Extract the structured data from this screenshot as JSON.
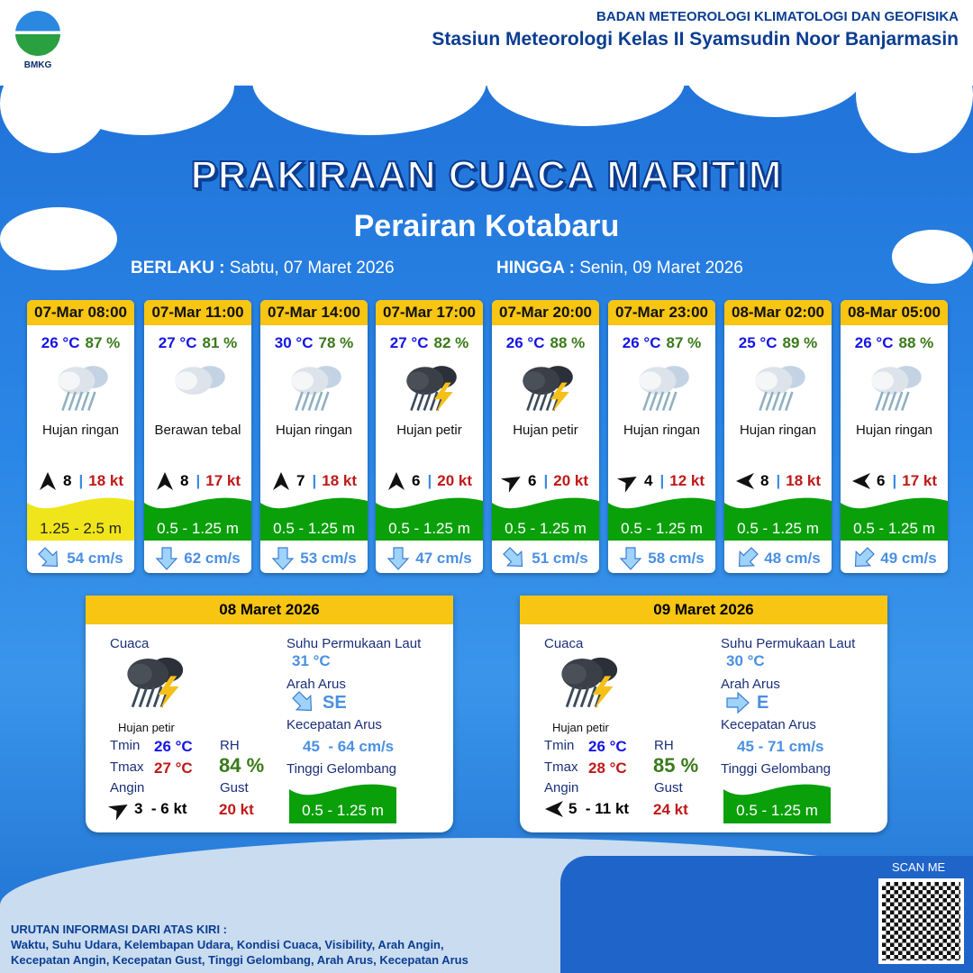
{
  "header": {
    "logo_text": "BMKG",
    "org": "BADAN METEOROLOGI KLIMATOLOGI DAN GEOFISIKA",
    "station": "Stasiun Meteorologi Kelas II Syamsudin Noor Banjarmasin"
  },
  "title": "PRAKIRAAN CUACA MARITIM",
  "subtitle": "Perairan Kotabaru",
  "validity": {
    "from_label": "BERLAKU :",
    "from": "Sabtu, 07 Maret 2026",
    "to_label": "HINGGA :",
    "to": "Senin, 09 Maret 2026"
  },
  "colors": {
    "header": "#f7c512",
    "wave_yellow": "#f0e51a",
    "wave_green": "#0aa00a",
    "temp": "#1414e6",
    "rh": "#3a7a1a",
    "gust": "#c01818",
    "current": "#4a90e2"
  },
  "forecasts": [
    {
      "time": "07-Mar 08:00",
      "temp": "26 °C",
      "rh": "87 %",
      "icon": "light-rain-icon",
      "weather": "Hujan ringan",
      "wind_dir_deg": 180,
      "wind": "8",
      "gust": "18 kt",
      "wave": "1.25 - 2.5 m",
      "wave_color": "yellow",
      "current_dir_deg": 135,
      "current": "54 cm/s"
    },
    {
      "time": "07-Mar 11:00",
      "temp": "27 °C",
      "rh": "81 %",
      "icon": "overcast-icon",
      "weather": "Berawan tebal",
      "wind_dir_deg": 180,
      "wind": "8",
      "gust": "17 kt",
      "wave": "0.5 - 1.25 m",
      "wave_color": "green",
      "current_dir_deg": 180,
      "current": "62 cm/s"
    },
    {
      "time": "07-Mar 14:00",
      "temp": "30 °C",
      "rh": "78 %",
      "icon": "light-rain-icon",
      "weather": "Hujan ringan",
      "wind_dir_deg": 180,
      "wind": "7",
      "gust": "18 kt",
      "wave": "0.5 - 1.25 m",
      "wave_color": "green",
      "current_dir_deg": 180,
      "current": "53 cm/s"
    },
    {
      "time": "07-Mar 17:00",
      "temp": "27 °C",
      "rh": "82 %",
      "icon": "thunderstorm-icon",
      "weather": "Hujan petir",
      "wind_dir_deg": 180,
      "wind": "6",
      "gust": "20 kt",
      "wave": "0.5 - 1.25 m",
      "wave_color": "green",
      "current_dir_deg": 180,
      "current": "47 cm/s"
    },
    {
      "time": "07-Mar 20:00",
      "temp": "26 °C",
      "rh": "88 %",
      "icon": "thunderstorm-icon",
      "weather": "Hujan petir",
      "wind_dir_deg": 240,
      "wind": "6",
      "gust": "20 kt",
      "wave": "0.5 - 1.25 m",
      "wave_color": "green",
      "current_dir_deg": 135,
      "current": "51 cm/s"
    },
    {
      "time": "07-Mar 23:00",
      "temp": "26 °C",
      "rh": "87 %",
      "icon": "light-rain-icon",
      "weather": "Hujan ringan",
      "wind_dir_deg": 240,
      "wind": "4",
      "gust": "12 kt",
      "wave": "0.5 - 1.25 m",
      "wave_color": "green",
      "current_dir_deg": 180,
      "current": "58 cm/s"
    },
    {
      "time": "08-Mar 02:00",
      "temp": "25 °C",
      "rh": "89 %",
      "icon": "light-rain-icon",
      "weather": "Hujan ringan",
      "wind_dir_deg": 90,
      "wind": "8",
      "gust": "18 kt",
      "wave": "0.5 - 1.25 m",
      "wave_color": "green",
      "current_dir_deg": 225,
      "current": "48 cm/s"
    },
    {
      "time": "08-Mar 05:00",
      "temp": "26 °C",
      "rh": "88 %",
      "icon": "light-rain-icon",
      "weather": "Hujan ringan",
      "wind_dir_deg": 90,
      "wind": "6",
      "gust": "17 kt",
      "wave": "0.5 - 1.25 m",
      "wave_color": "green",
      "current_dir_deg": 225,
      "current": "49 cm/s"
    }
  ],
  "daily": [
    {
      "date": "08 Maret 2026",
      "weather_label": "Cuaca",
      "icon": "thunderstorm-icon",
      "weather": "Hujan petir",
      "tmin_label": "Tmin",
      "tmin": "26 °C",
      "tmax_label": "Tmax",
      "tmax": "27 °C",
      "rh_label": "RH",
      "rh": "84 %",
      "wind_label": "Angin",
      "wind_dir_deg": 240,
      "wind": "3  - 6 kt",
      "gust_label": "Gust",
      "gust": "20 kt",
      "sst_label": "Suhu Permukaan Laut",
      "sst": "31 °C",
      "cur_dir_label": "Arah Arus",
      "cur_dir": "SE",
      "cur_dir_deg": 135,
      "cur_speed_label": "Kecepatan Arus",
      "cur_speed": "45  - 64 cm/s",
      "wave_label": "Tinggi Gelombang",
      "wave": "0.5 - 1.25 m"
    },
    {
      "date": "09 Maret 2026",
      "weather_label": "Cuaca",
      "icon": "thunderstorm-icon",
      "weather": "Hujan petir",
      "tmin_label": "Tmin",
      "tmin": "26 °C",
      "tmax_label": "Tmax",
      "tmax": "28 °C",
      "rh_label": "RH",
      "rh": "85 %",
      "wind_label": "Angin",
      "wind_dir_deg": 90,
      "wind": "5  - 11 kt",
      "gust_label": "Gust",
      "gust": "24 kt",
      "sst_label": "Suhu Permukaan Laut",
      "sst": "30 °C",
      "cur_dir_label": "Arah Arus",
      "cur_dir": "E",
      "cur_dir_deg": 90,
      "cur_speed_label": "Kecepatan Arus",
      "cur_speed": "45 - 71 cm/s",
      "wave_label": "Tinggi Gelombang",
      "wave": "0.5 - 1.25 m"
    }
  ],
  "scan_label": "SCAN ME",
  "footer": {
    "title": "URUTAN INFORMASI DARI ATAS KIRI :",
    "line1": "Waktu, Suhu Udara, Kelembapan Udara, Kondisi Cuaca, Visibility, Arah Angin,",
    "line2": "Kecepatan Angin, Kecepatan Gust, Tinggi Gelombang, Arah Arus, Kecepatan Arus"
  }
}
